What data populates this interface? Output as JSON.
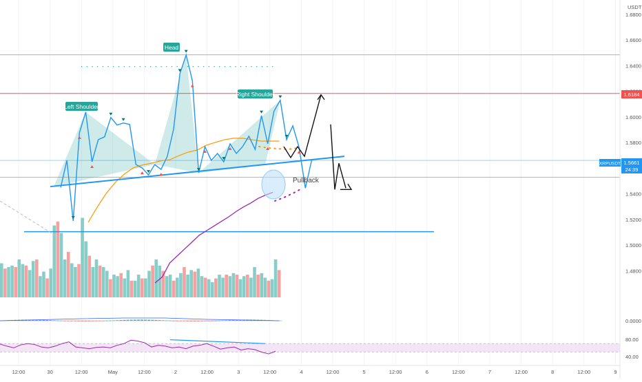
{
  "axis": {
    "currency": "USDT",
    "price_ticks": [
      "1.6800",
      "1.6600",
      "1.6400",
      "1.6200",
      "1.6000",
      "1.5800",
      "1.5600",
      "1.5400",
      "1.5200",
      "1.5000",
      "1.4800"
    ],
    "osc_ticks": [
      "0.0000"
    ],
    "rsi_ticks": [
      "80.00",
      "40.00"
    ],
    "time_ticks": [
      "12:00",
      "30",
      "12:00",
      "May",
      "12:00",
      "2",
      "12:00",
      "3",
      "12:00",
      "4",
      "12:00",
      "5",
      "12:00",
      "6",
      "12:00",
      "7",
      "12:00",
      "8",
      "12:00",
      "9"
    ]
  },
  "badges": {
    "resistance": {
      "label": "1.6184",
      "color": "#ef5350"
    },
    "symbol": {
      "name": "XRPUSDT",
      "price": "1.5661",
      "countdown": "24:39",
      "color": "#2196f3"
    }
  },
  "annotations": {
    "left_shoulder": "Left Shoulder",
    "head": "Head",
    "right_shoulder": "Right Shoulder",
    "pullback": "Pullback"
  },
  "colors": {
    "up": "#26a69a",
    "down": "#ef5350",
    "neckline": "#2196f3",
    "ma_fast": "#ff9800",
    "ma_slow": "#9c27b0",
    "label_bg": "#26a69a",
    "rsi_line": "#9c27b0",
    "rsi_band": "#f3e5f5"
  },
  "chart_data": {
    "type": "line",
    "symbol": "XRPUSDT",
    "pattern": "Head and Shoulders",
    "price_ylim": [
      1.47,
      1.69
    ],
    "resistance_level": 1.6184,
    "support_level": 1.5105,
    "head_level": 1.6485,
    "last_price": 1.5661,
    "series": [
      {
        "values": [
          {
            "t": "Apr 30 06:00",
            "p": 1.5449
          },
          {
            "t": "Apr 30 08:00",
            "p": 1.5661
          },
          {
            "t": "Apr 30 10:00",
            "p": 1.5189
          },
          {
            "t": "Apr 30 12:00",
            "p": 1.5877
          },
          {
            "t": "Apr 30 14:00",
            "p": 1.6039
          },
          {
            "t": "Apr 30 16:00",
            "p": 1.5651
          },
          {
            "t": "Apr 30 18:00",
            "p": 1.5823
          },
          {
            "t": "Apr 30 20:00",
            "p": 1.5845
          },
          {
            "t": "Apr 30 22:00",
            "p": 1.5996
          },
          {
            "t": "May 1 00:00",
            "p": 1.5937
          },
          {
            "t": "May 1 02:00",
            "p": 1.5953
          },
          {
            "t": "May 1 04:00",
            "p": 1.5942
          },
          {
            "t": "May 1 06:00",
            "p": 1.5629
          },
          {
            "t": "May 1 08:00",
            "p": 1.5602
          },
          {
            "t": "May 1 10:00",
            "p": 1.5548
          },
          {
            "t": "May 1 12:00",
            "p": 1.5629
          },
          {
            "t": "May 1 14:00",
            "p": 1.5591
          },
          {
            "t": "May 1 16:00",
            "p": 1.5693
          },
          {
            "t": "May 1 18:00",
            "p": 1.5904
          },
          {
            "t": "May 1 20:00",
            "p": 1.6336
          },
          {
            "t": "May 1 22:00",
            "p": 1.6485
          },
          {
            "t": "May 2 00:00",
            "p": 1.6282
          },
          {
            "t": "May 2 02:00",
            "p": 1.5564
          },
          {
            "t": "May 2 04:00",
            "p": 1.5769
          },
          {
            "t": "May 2 06:00",
            "p": 1.5661
          },
          {
            "t": "May 2 08:00",
            "p": 1.5715
          },
          {
            "t": "May 2 10:00",
            "p": 1.565
          },
          {
            "t": "May 2 12:00",
            "p": 1.5791
          },
          {
            "t": "May 2 14:00",
            "p": 1.5715
          },
          {
            "t": "May 2 16:00",
            "p": 1.5769
          },
          {
            "t": "May 2 18:00",
            "p": 1.585
          },
          {
            "t": "May 2 20:00",
            "p": 1.5747
          },
          {
            "t": "May 2 22:00",
            "p": 1.6012
          },
          {
            "t": "May 3 00:00",
            "p": 1.5791
          },
          {
            "t": "May 3 02:00",
            "p": 1.6045
          },
          {
            "t": "May 3 04:00",
            "p": 1.6131
          },
          {
            "t": "May 3 06:00",
            "p": 1.5823
          },
          {
            "t": "May 3 08:00",
            "p": 1.5931
          },
          {
            "t": "May 3 10:00",
            "p": 1.5764
          },
          {
            "t": "May 3 12:00",
            "p": 1.5445
          },
          {
            "t": "May 3 14:00",
            "p": 1.5661
          }
        ]
      },
      {
        "name": "MA fast",
        "values": [
          1.5178,
          1.5297,
          1.5405,
          1.5491,
          1.5556,
          1.5605,
          1.5626,
          1.564,
          1.5658,
          1.5667,
          1.5699,
          1.5726,
          1.5742,
          1.578,
          1.5802,
          1.5823,
          1.5834,
          1.5834,
          1.5823,
          1.5812,
          1.5812,
          1.5812
        ]
      },
      {
        "name": "MA slow",
        "values": [
          1.4705,
          1.4753,
          1.4861,
          1.4915,
          1.4969,
          1.5023,
          1.5077,
          1.5113,
          1.5149,
          1.5185,
          1.5221,
          1.5262,
          1.5298,
          1.5329,
          1.5365,
          1.5391,
          1.5412
        ]
      }
    ],
    "projection": [
      1.5769,
      1.5683,
      1.5769,
      1.5693,
      1.6173,
      1.5942,
      1.5434,
      1.5639,
      1.5445
    ],
    "rsi": {
      "ylim": [
        30,
        90
      ],
      "bands": [
        70,
        50
      ],
      "values": [
        69,
        64,
        60,
        67,
        70,
        68,
        62,
        60,
        64,
        70,
        74,
        62,
        60,
        58,
        61,
        62,
        60,
        66,
        70,
        78,
        76,
        72,
        62,
        66,
        64,
        60,
        62,
        58,
        64,
        66,
        70,
        64,
        57,
        60,
        62,
        55,
        58,
        56,
        50,
        46,
        52
      ]
    },
    "volume": [
      0.45,
      0.38,
      0.4,
      0.42,
      0.4,
      0.5,
      0.44,
      0.42,
      0.36,
      0.48,
      0.5,
      0.28,
      0.34,
      0.25,
      0.38,
      0.95,
      1.0,
      0.85,
      0.5,
      0.6,
      0.45,
      0.4,
      0.44,
      1.05,
      0.74,
      0.55,
      0.4,
      0.5,
      0.42,
      0.4,
      0.35,
      0.24,
      0.3,
      0.28,
      0.32,
      0.25,
      0.36,
      0.22,
      0.22,
      0.3,
      0.25,
      0.25,
      0.35,
      0.42,
      0.5,
      0.42,
      0.35,
      0.28,
      0.3,
      0.22,
      0.26,
      0.32,
      0.4,
      0.3,
      0.36,
      0.34,
      0.38,
      0.28,
      0.26,
      0.24,
      0.2,
      0.25,
      0.3,
      0.26,
      0.3,
      0.28,
      0.32,
      0.3,
      0.24,
      0.28,
      0.3,
      0.26,
      0.4,
      0.3,
      0.32,
      0.26,
      0.22,
      0.24,
      0.5,
      0.36
    ]
  }
}
